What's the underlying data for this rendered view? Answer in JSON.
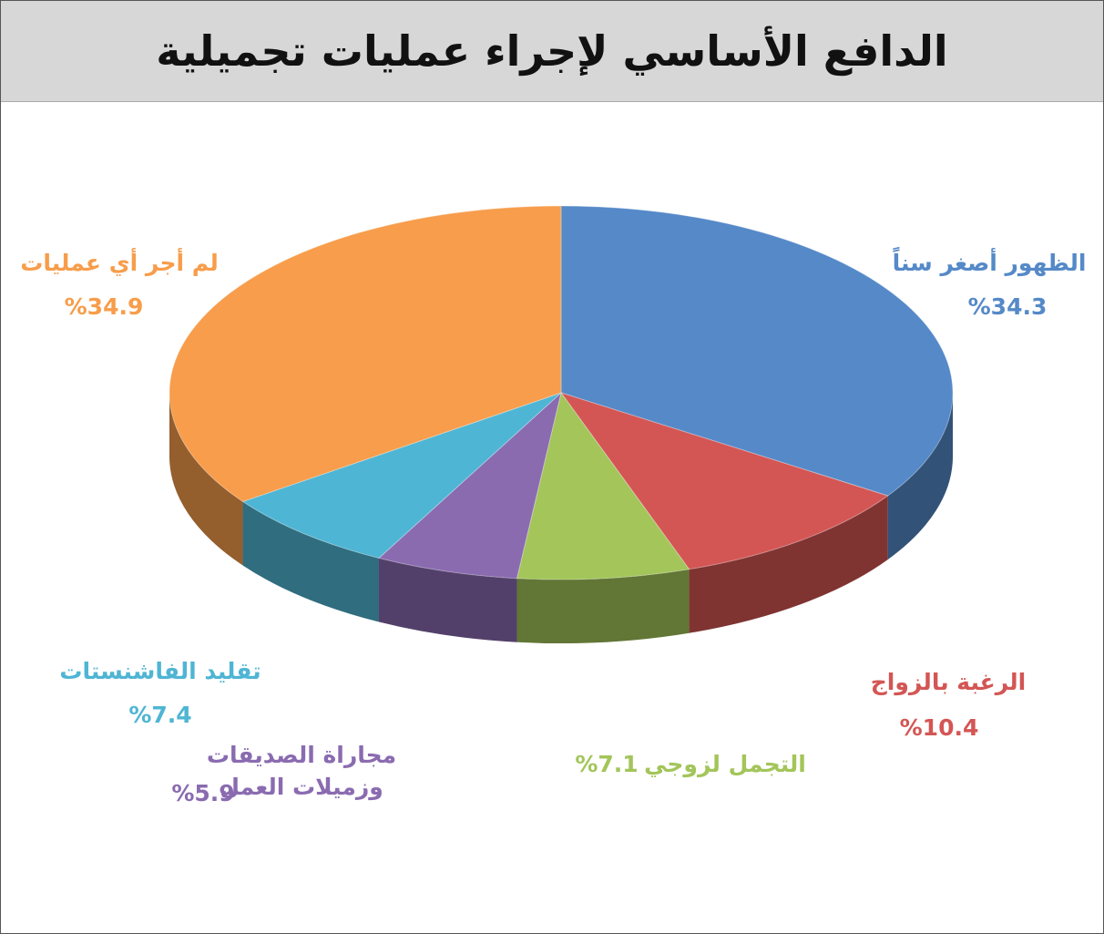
{
  "chart_data": {
    "type": "pie",
    "title": "الدافع الأساسي لإجراء عمليات تجميلية",
    "categories": [
      "الظهور أصغر سناً",
      "الرغبة بالزواج",
      "التجمل لزوجي",
      "مجاراة الصديقات وزميلات العمل",
      "تقليد الفاشنستات",
      "لم أجر أي عمليات"
    ],
    "values": [
      34.3,
      10.4,
      7.1,
      5.9,
      7.4,
      34.9
    ],
    "value_labels": [
      "%34.3",
      "%10.4",
      "%7.1",
      "%5.9",
      "%7.4",
      "%34.9"
    ],
    "colors": [
      "#5589c8",
      "#d35654",
      "#a3c55a",
      "#8a6bb0",
      "#4fb5d4",
      "#f79d4b"
    ]
  }
}
